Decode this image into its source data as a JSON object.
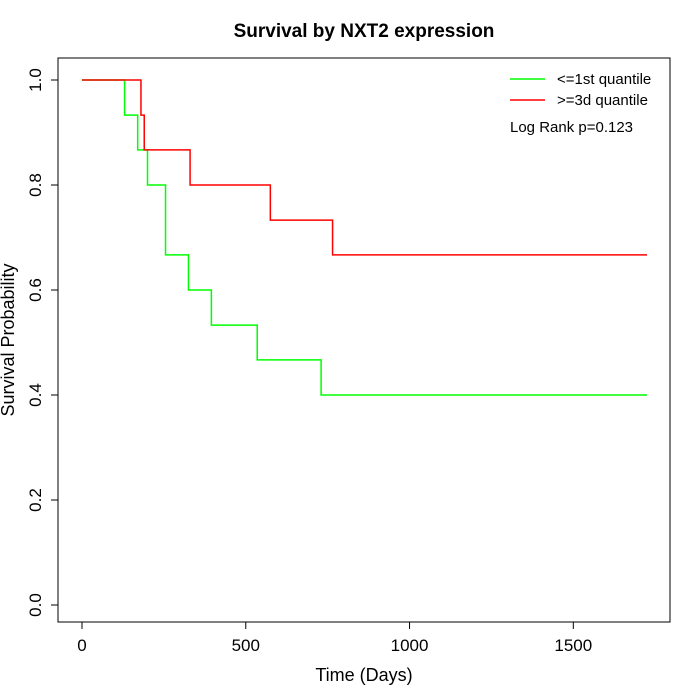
{
  "chart_data": {
    "type": "line",
    "title": "Survival by NXT2 expression",
    "xlabel": "Time (Days)",
    "ylabel": "Survival Probability",
    "xlim": [
      0,
      1730
    ],
    "ylim": [
      0,
      1.0
    ],
    "x_ticks": [
      0,
      500,
      1000,
      1500
    ],
    "x_tick_labels": [
      "0",
      "500",
      "1000",
      "1500"
    ],
    "y_ticks": [
      0,
      0.2,
      0.4,
      0.6,
      0.8,
      1.0
    ],
    "y_tick_labels": [
      "0.0",
      "0.2",
      "0.4",
      "0.6",
      "0.8",
      "1.0"
    ],
    "grid": false,
    "legend_position": "top-right",
    "annotation": "Log Rank p=0.123",
    "series": [
      {
        "name": "<=1st quantile",
        "color": "#00ff00",
        "step": true,
        "x": [
          0,
          130,
          170,
          200,
          255,
          325,
          395,
          535,
          730,
          1725
        ],
        "y": [
          1.0,
          0.933,
          0.867,
          0.8,
          0.667,
          0.6,
          0.533,
          0.467,
          0.4,
          0.4
        ]
      },
      {
        "name": ">=3d quantile",
        "color": "#ff0000",
        "step": true,
        "x": [
          0,
          180,
          190,
          330,
          575,
          765,
          1725
        ],
        "y": [
          1.0,
          0.933,
          0.867,
          0.8,
          0.733,
          0.667,
          0.667
        ]
      }
    ]
  }
}
